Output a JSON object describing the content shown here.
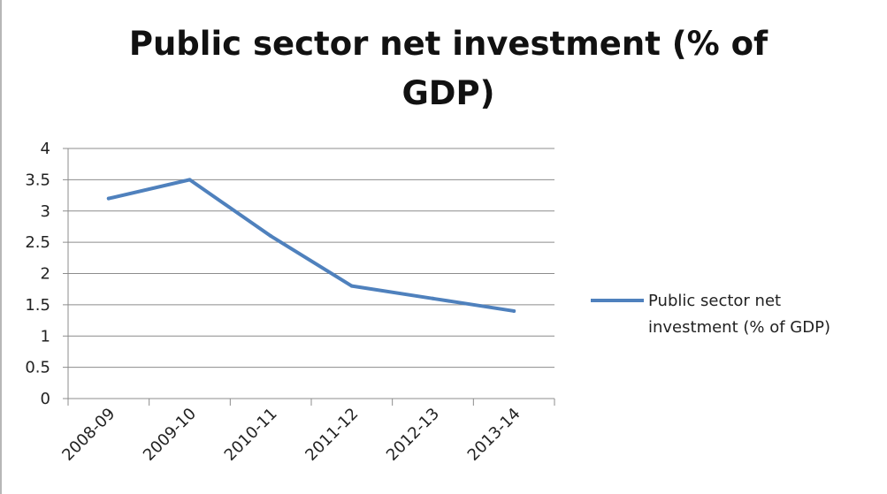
{
  "chart_data": {
    "type": "line",
    "title_lines": [
      "Public sector net investment (% of",
      "GDP)"
    ],
    "categories": [
      "2008-09",
      "2009-10",
      "2010-11",
      "2011-12",
      "2012-13",
      "2013-14"
    ],
    "series": [
      {
        "name": "Public sector net investment (% of GDP)",
        "values": [
          3.2,
          3.5,
          2.6,
          1.8,
          1.6,
          1.4
        ],
        "color": "#4f81bd"
      }
    ],
    "y_ticks": [
      "4",
      "3.5",
      "3",
      "2.5",
      "2",
      "1.5",
      "1",
      "0.5",
      "0"
    ],
    "ylim": [
      0,
      4
    ],
    "legend_lines": [
      "Public sector net",
      "investment (% of GDP)"
    ],
    "legend_position": "right",
    "grid": true
  }
}
